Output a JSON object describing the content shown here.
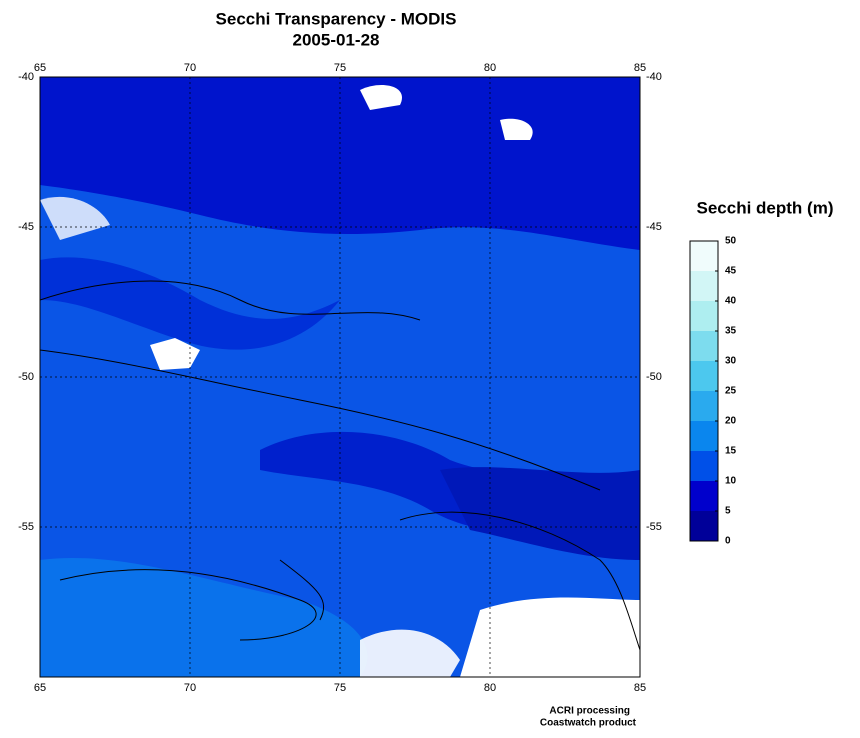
{
  "title": "Secchi Transparency - MODIS",
  "date": "2005-01-28",
  "map": {
    "xlim": [
      65,
      85
    ],
    "ylim": [
      -40,
      -60
    ],
    "xticks": [
      65,
      70,
      75,
      80,
      85
    ],
    "yticks": [
      -40,
      -45,
      -50,
      -55
    ],
    "grid": true
  },
  "colorbar": {
    "title": "Secchi depth (m)",
    "ticks": [
      0,
      5,
      10,
      15,
      20,
      25,
      30,
      35,
      40,
      45,
      50
    ],
    "colors": [
      "#000099",
      "#0000cc",
      "#0050e8",
      "#0a86ee",
      "#2aaaee",
      "#4cc8ee",
      "#7ddcee",
      "#aeeef0",
      "#d2f6f6",
      "#f0fcfc"
    ]
  },
  "footer": {
    "line1": "ACRI processing",
    "line2": "Coastwatch product"
  }
}
